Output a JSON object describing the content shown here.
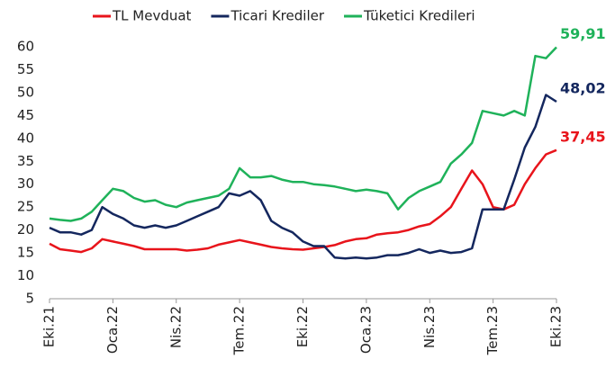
{
  "chart_data": {
    "type": "line",
    "categories": [
      "Eki.21",
      null,
      null,
      null,
      null,
      null,
      "Oca.22",
      null,
      null,
      null,
      null,
      null,
      "Nis.22",
      null,
      null,
      null,
      null,
      null,
      "Tem.22",
      null,
      null,
      null,
      null,
      null,
      "Eki.22",
      null,
      null,
      null,
      null,
      null,
      "Oca.23",
      null,
      null,
      null,
      null,
      null,
      "Nis.23",
      null,
      null,
      null,
      null,
      null,
      "Tem.23",
      null,
      null,
      null,
      null,
      null,
      "Eki.23"
    ],
    "ylim": [
      5,
      60
    ],
    "yticks": [
      5,
      10,
      15,
      20,
      25,
      30,
      35,
      40,
      45,
      50,
      55,
      60
    ],
    "legend": "top",
    "series": [
      {
        "name": "TL Mevduat",
        "color": "#e8141b",
        "values": [
          17,
          15.8,
          15.5,
          15.2,
          16,
          18,
          17.5,
          17,
          16.5,
          15.8,
          15.8,
          15.8,
          15.8,
          15.5,
          15.7,
          16,
          16.8,
          17.3,
          17.8,
          17.3,
          16.8,
          16.3,
          16,
          15.8,
          15.7,
          16,
          16.3,
          16.7,
          17.5,
          18,
          18.2,
          19,
          19.3,
          19.5,
          20,
          20.8,
          21.3,
          23,
          25,
          29,
          33,
          30,
          25,
          24.5,
          25.5,
          30,
          33.5,
          36.5,
          37.45
        ],
        "value_labels": [
          null,
          null,
          null,
          null,
          null,
          null,
          null,
          null,
          null,
          null,
          null,
          null,
          null,
          null,
          null,
          null,
          null,
          null,
          null,
          null,
          null,
          null,
          null,
          null,
          null,
          null,
          null,
          null,
          null,
          null,
          null,
          null,
          null,
          null,
          null,
          null,
          null,
          null,
          null,
          null,
          null,
          null,
          null,
          null,
          null,
          null,
          null,
          null,
          "37,45"
        ]
      },
      {
        "name": "Ticari Krediler",
        "color": "#14275e",
        "values": [
          20.5,
          19.5,
          19.5,
          19,
          20,
          25,
          23.5,
          22.5,
          21,
          20.5,
          21,
          20.5,
          21,
          22,
          23,
          24,
          25,
          28,
          27.5,
          28.5,
          26.5,
          22,
          20.5,
          19.5,
          17.5,
          16.5,
          16.5,
          14,
          13.8,
          14,
          13.8,
          14,
          14.5,
          14.5,
          15,
          15.8,
          15,
          15.5,
          15,
          15.2,
          16,
          24.5,
          24.5,
          24.5,
          31,
          38,
          42.5,
          49.5,
          48.02
        ],
        "value_labels": [
          null,
          null,
          null,
          null,
          null,
          null,
          null,
          null,
          null,
          null,
          null,
          null,
          null,
          null,
          null,
          null,
          null,
          null,
          null,
          null,
          null,
          null,
          null,
          null,
          null,
          null,
          null,
          null,
          null,
          null,
          null,
          null,
          null,
          null,
          null,
          null,
          null,
          null,
          null,
          null,
          null,
          null,
          null,
          null,
          null,
          null,
          null,
          null,
          "48,02"
        ]
      },
      {
        "name": "Tüketici Kredileri",
        "color": "#1fb25a",
        "values": [
          22.5,
          22.2,
          22,
          22.5,
          24,
          26.5,
          29,
          28.5,
          27,
          26.2,
          26.5,
          25.5,
          25,
          26,
          26.5,
          27,
          27.5,
          29,
          33.5,
          31.5,
          31.5,
          31.8,
          31,
          30.5,
          30.5,
          30,
          29.8,
          29.5,
          29,
          28.5,
          28.8,
          28.5,
          28,
          24.5,
          27,
          28.5,
          29.5,
          30.5,
          34.5,
          36.5,
          39,
          46,
          45.5,
          45,
          46,
          45,
          58,
          57.5,
          59.91
        ],
        "value_labels": [
          null,
          null,
          null,
          null,
          null,
          null,
          null,
          null,
          null,
          null,
          null,
          null,
          null,
          null,
          null,
          null,
          null,
          null,
          null,
          null,
          null,
          null,
          null,
          null,
          null,
          null,
          null,
          null,
          null,
          null,
          null,
          null,
          null,
          null,
          null,
          null,
          null,
          null,
          null,
          null,
          null,
          null,
          null,
          null,
          null,
          null,
          null,
          null,
          "59,91"
        ]
      }
    ]
  }
}
